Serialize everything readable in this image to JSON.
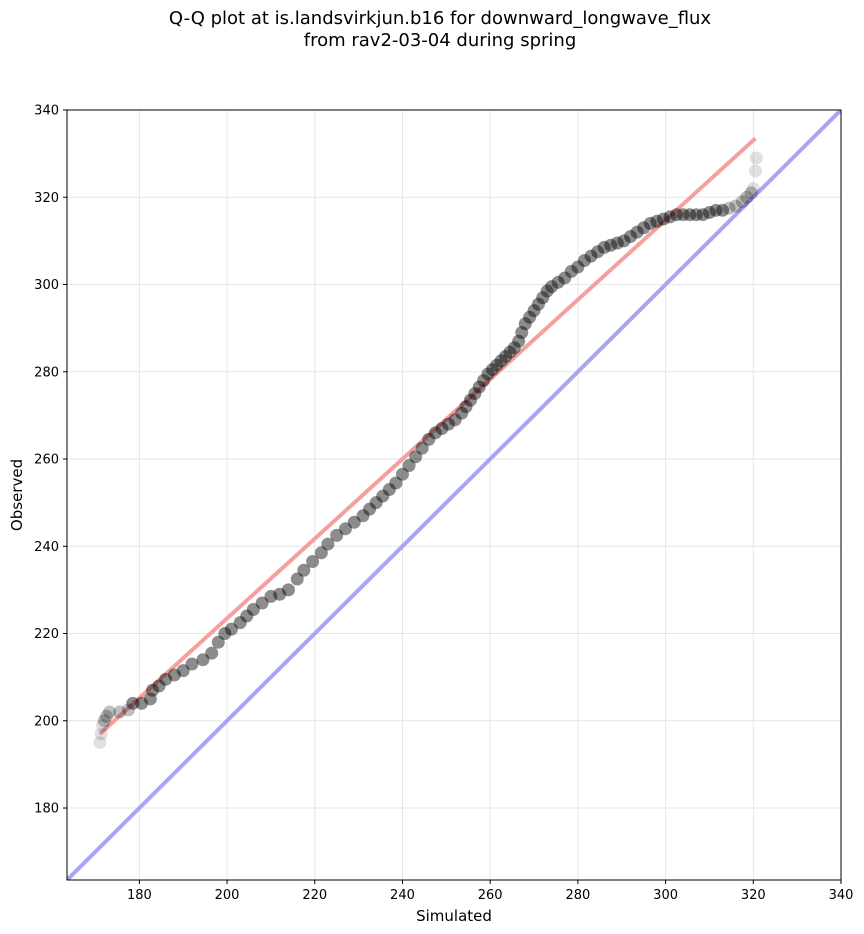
{
  "chart_data": {
    "type": "scatter",
    "title": "Q-Q plot at is.landsvirkjun.b16 for downward_longwave_flux",
    "subtitle": "from rav2-03-04 during spring",
    "xlabel": "Simulated",
    "ylabel": "Observed",
    "xlim": [
      163.5,
      340
    ],
    "ylim": [
      163.5,
      340
    ],
    "xticks": [
      180,
      200,
      220,
      240,
      260,
      280,
      300,
      320,
      340
    ],
    "yticks": [
      180,
      200,
      220,
      240,
      260,
      280,
      300,
      320,
      340
    ],
    "grid": true,
    "colors": {
      "points": "#000000",
      "fit_line": "#f4a0a0",
      "identity_line": "#a6a6f4"
    },
    "fit_line": {
      "x": [
        171,
        320.5
      ],
      "y": [
        197,
        333.5
      ]
    },
    "identity_line": {
      "x": [
        163.5,
        340
      ],
      "y": [
        163.5,
        340
      ]
    },
    "points": [
      [
        171,
        195
      ],
      [
        171.3,
        197
      ],
      [
        171.6,
        199
      ],
      [
        172,
        200
      ],
      [
        172.5,
        201
      ],
      [
        173.2,
        202
      ],
      [
        175.5,
        202
      ],
      [
        177.5,
        202.5
      ],
      [
        178.5,
        204
      ],
      [
        180.5,
        204
      ],
      [
        182.5,
        205
      ],
      [
        183,
        207
      ],
      [
        184.5,
        208
      ],
      [
        186,
        209.5
      ],
      [
        188,
        210.5
      ],
      [
        190,
        211.5
      ],
      [
        192,
        213
      ],
      [
        194.5,
        214
      ],
      [
        196.5,
        215.5
      ],
      [
        198,
        218
      ],
      [
        199.5,
        220
      ],
      [
        201,
        221
      ],
      [
        203,
        222.5
      ],
      [
        204.5,
        224
      ],
      [
        206,
        225.5
      ],
      [
        208,
        227
      ],
      [
        210,
        228.5
      ],
      [
        212,
        229
      ],
      [
        214,
        230
      ],
      [
        216,
        232.5
      ],
      [
        217.5,
        234.5
      ],
      [
        219.5,
        236.5
      ],
      [
        221.5,
        238.5
      ],
      [
        223,
        240.5
      ],
      [
        225,
        242.5
      ],
      [
        227,
        244
      ],
      [
        229,
        245.5
      ],
      [
        231,
        247
      ],
      [
        232.5,
        248.5
      ],
      [
        234,
        250
      ],
      [
        235.5,
        251.5
      ],
      [
        237,
        253
      ],
      [
        238.5,
        254.5
      ],
      [
        240,
        256.5
      ],
      [
        241.5,
        258.5
      ],
      [
        243,
        260.5
      ],
      [
        244.5,
        262.5
      ],
      [
        246,
        264.5
      ],
      [
        247.5,
        266
      ],
      [
        249,
        267
      ],
      [
        250.5,
        268
      ],
      [
        252,
        269
      ],
      [
        253.5,
        270.5
      ],
      [
        254.5,
        272
      ],
      [
        255.5,
        273.5
      ],
      [
        256.5,
        275
      ],
      [
        257.5,
        276.5
      ],
      [
        258.5,
        278
      ],
      [
        259.5,
        279.5
      ],
      [
        260.5,
        280.5
      ],
      [
        261.5,
        281.5
      ],
      [
        262.5,
        282.5
      ],
      [
        263.5,
        283.5
      ],
      [
        264.5,
        284.5
      ],
      [
        265.5,
        285.5
      ],
      [
        266.5,
        287
      ],
      [
        267.2,
        289
      ],
      [
        268,
        291
      ],
      [
        269,
        292.5
      ],
      [
        270,
        294
      ],
      [
        271,
        295.5
      ],
      [
        272,
        297
      ],
      [
        273,
        298.5
      ],
      [
        274,
        299.5
      ],
      [
        275.5,
        300.5
      ],
      [
        277,
        301.5
      ],
      [
        278.5,
        303
      ],
      [
        280,
        304
      ],
      [
        281.5,
        305.5
      ],
      [
        283,
        306.5
      ],
      [
        284.5,
        307.5
      ],
      [
        286,
        308.5
      ],
      [
        287.5,
        309
      ],
      [
        289,
        309.5
      ],
      [
        290.5,
        310
      ],
      [
        292,
        311
      ],
      [
        293.5,
        312
      ],
      [
        295,
        313
      ],
      [
        296.5,
        314
      ],
      [
        298,
        314.5
      ],
      [
        299.5,
        315
      ],
      [
        301,
        315.5
      ],
      [
        302.5,
        316
      ],
      [
        304,
        316
      ],
      [
        305.5,
        316
      ],
      [
        307,
        316
      ],
      [
        308.5,
        316
      ],
      [
        310,
        316.5
      ],
      [
        311.5,
        317
      ],
      [
        313,
        317
      ],
      [
        314.5,
        317.5
      ],
      [
        316,
        318
      ],
      [
        317.5,
        319
      ],
      [
        318.5,
        320
      ],
      [
        319.5,
        321
      ],
      [
        320,
        322
      ],
      [
        320.5,
        326
      ],
      [
        320.7,
        329
      ]
    ]
  }
}
